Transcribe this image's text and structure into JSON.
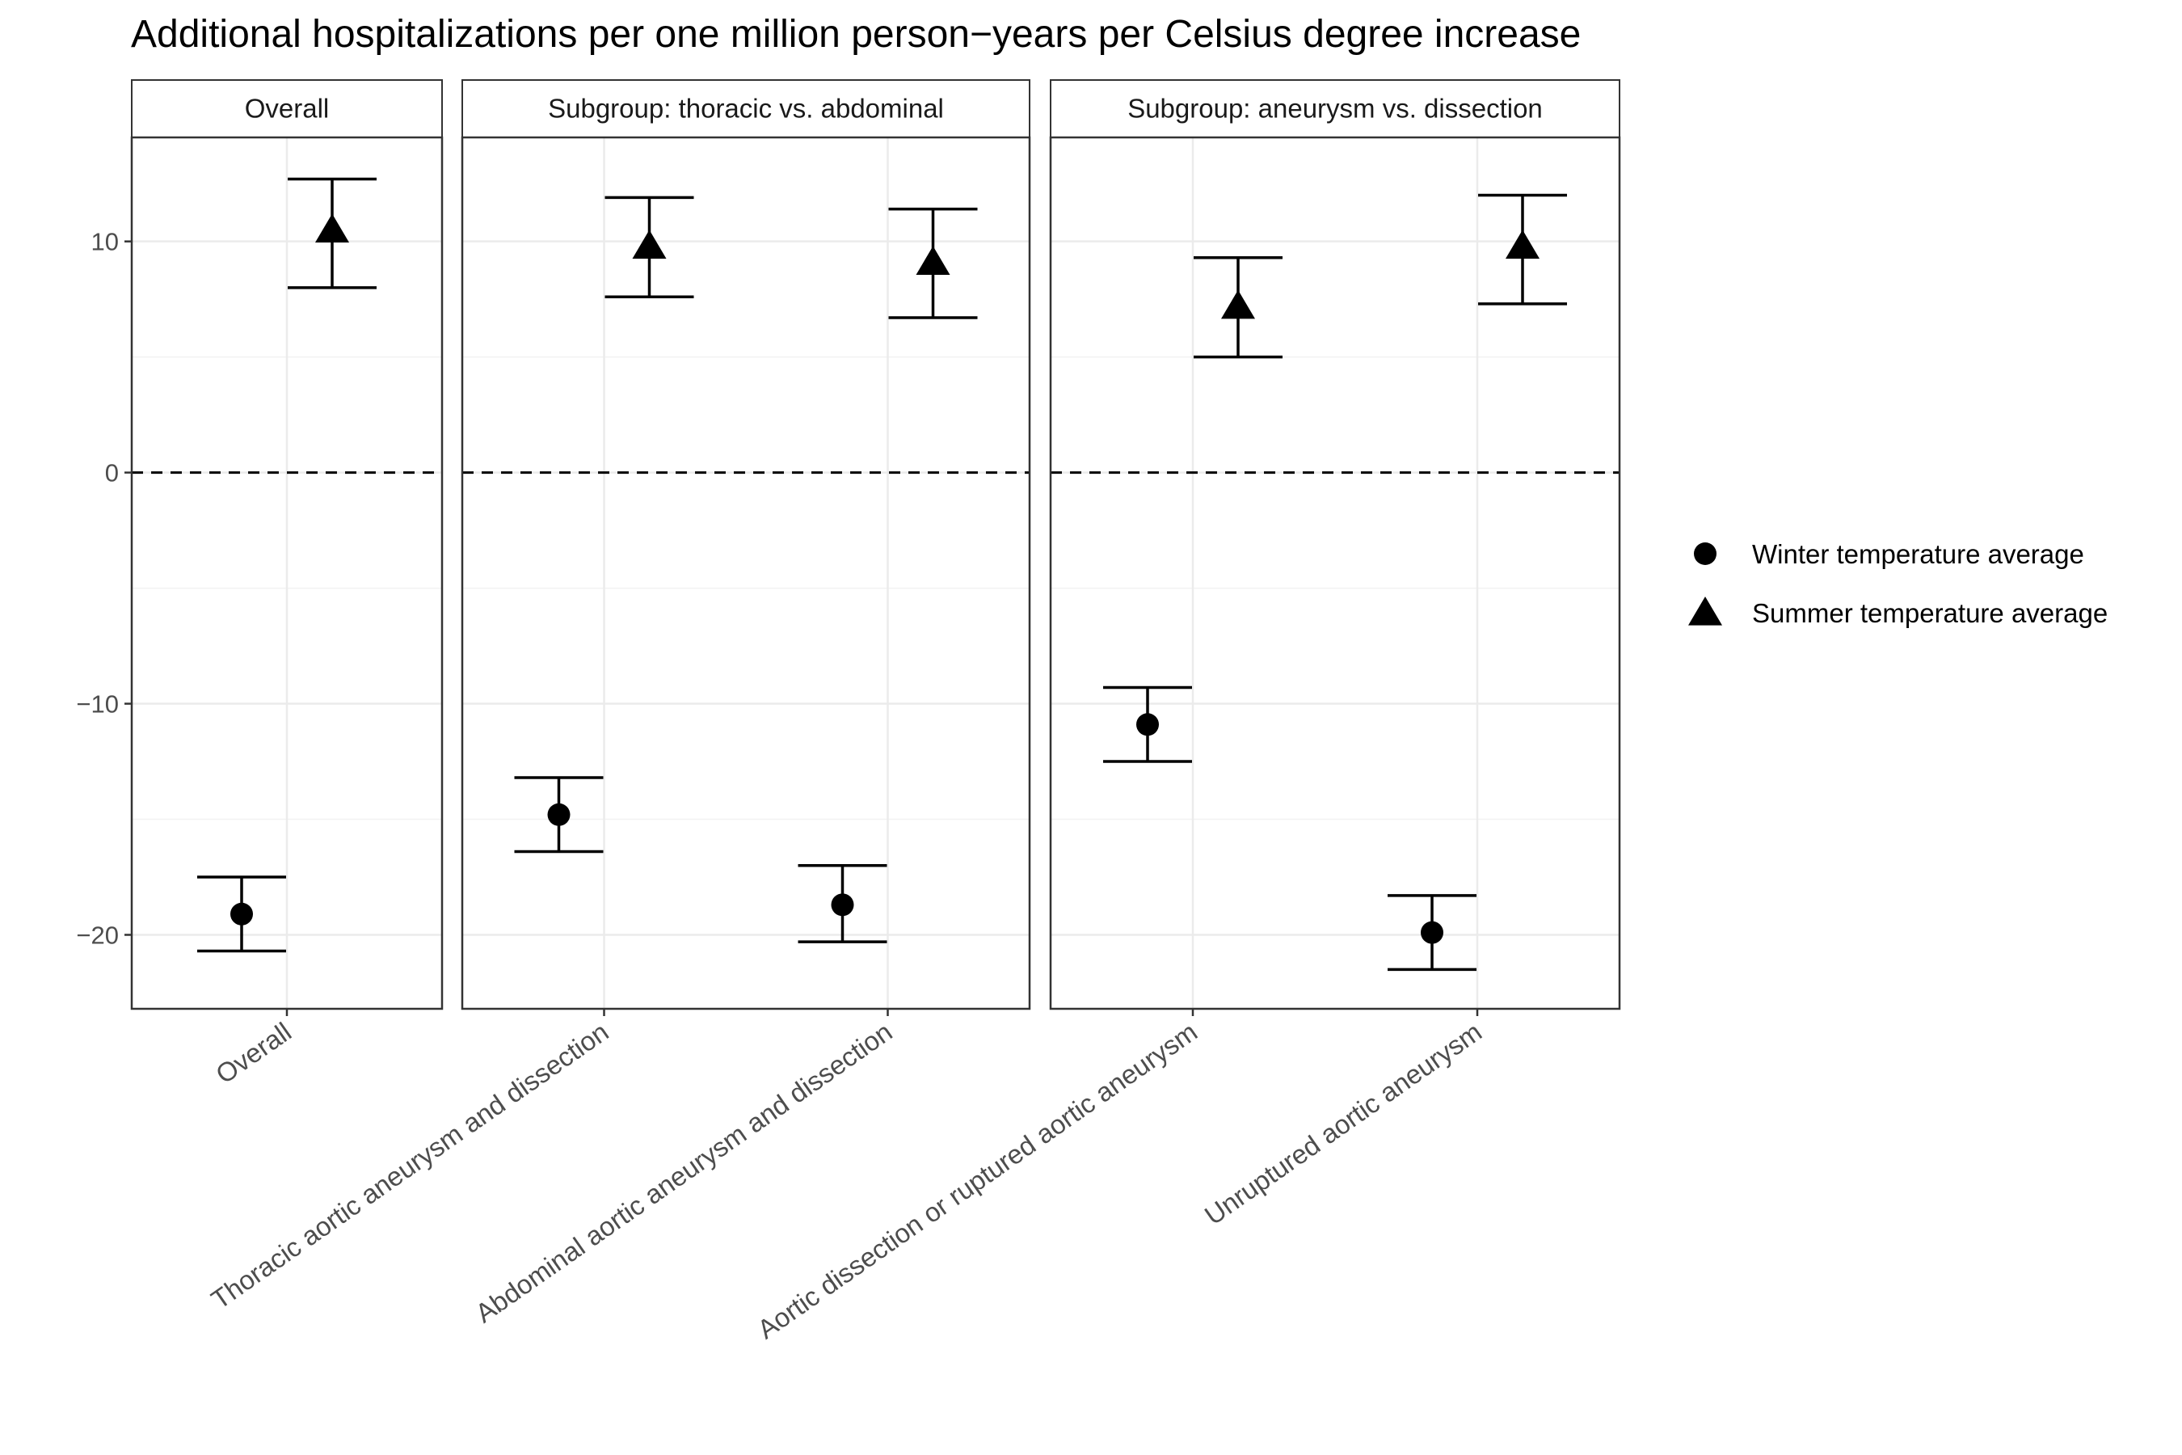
{
  "chart_data": {
    "type": "scatter",
    "title": "Additional hospitalizations per one million person−years per Celsius degree increase",
    "xlabel": "",
    "ylabel": "",
    "ylim": [
      -23.2,
      14.5
    ],
    "yticks": [
      10,
      0,
      -10,
      -20
    ],
    "ytick_labels": [
      "10",
      "0",
      "−10",
      "−20"
    ],
    "reference_line": {
      "y": 0,
      "style": "dashed"
    },
    "grid": true,
    "legend_position": "right",
    "series": [
      {
        "name": "Winter temperature average",
        "marker": "circle"
      },
      {
        "name": "Summer temperature average",
        "marker": "triangle"
      }
    ],
    "panels": [
      {
        "strip": "Overall",
        "categories": [
          "Overall"
        ],
        "points": [
          {
            "category": "Overall",
            "series": "Winter temperature average",
            "estimate": -19.1,
            "lower": -20.7,
            "upper": -17.5
          },
          {
            "category": "Overall",
            "series": "Summer temperature average",
            "estimate": 10.5,
            "lower": 8.0,
            "upper": 12.7
          }
        ]
      },
      {
        "strip": "Subgroup: thoracic vs. abdominal",
        "categories": [
          "Thoracic aortic aneurysm and dissection",
          "Abdominal aortic aneurysm and dissection"
        ],
        "points": [
          {
            "category": "Thoracic aortic aneurysm and dissection",
            "series": "Winter temperature average",
            "estimate": -14.8,
            "lower": -16.4,
            "upper": -13.2
          },
          {
            "category": "Thoracic aortic aneurysm and dissection",
            "series": "Summer temperature average",
            "estimate": 9.8,
            "lower": 7.6,
            "upper": 11.9
          },
          {
            "category": "Abdominal aortic aneurysm and dissection",
            "series": "Winter temperature average",
            "estimate": -18.7,
            "lower": -20.3,
            "upper": -17.0
          },
          {
            "category": "Abdominal aortic aneurysm and dissection",
            "series": "Summer temperature average",
            "estimate": 9.1,
            "lower": 6.7,
            "upper": 11.4
          }
        ]
      },
      {
        "strip": "Subgroup: aneurysm vs. dissection",
        "categories": [
          "Aortic dissection or ruptured aortic aneurysm",
          "Unruptured aortic aneurysm"
        ],
        "points": [
          {
            "category": "Aortic dissection or ruptured aortic aneurysm",
            "series": "Winter temperature average",
            "estimate": -10.9,
            "lower": -12.5,
            "upper": -9.3
          },
          {
            "category": "Aortic dissection or ruptured aortic aneurysm",
            "series": "Summer temperature average",
            "estimate": 7.2,
            "lower": 5.0,
            "upper": 9.3
          },
          {
            "category": "Unruptured aortic aneurysm",
            "series": "Winter temperature average",
            "estimate": -19.9,
            "lower": -21.5,
            "upper": -18.3
          },
          {
            "category": "Unruptured aortic aneurysm",
            "series": "Summer temperature average",
            "estimate": 9.8,
            "lower": 7.3,
            "upper": 12.0
          }
        ]
      }
    ]
  }
}
